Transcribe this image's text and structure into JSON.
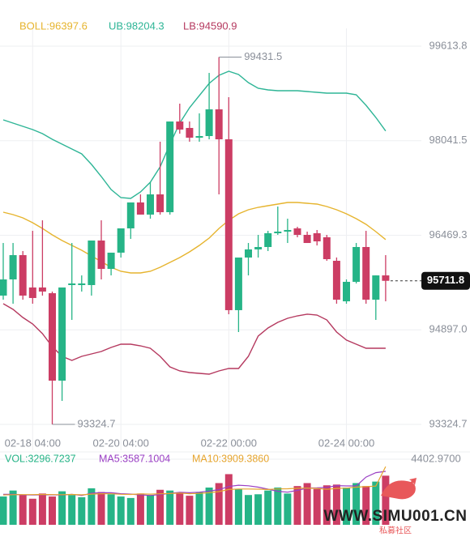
{
  "chart_data": {
    "type": "candlestick",
    "up_color": "#26b487",
    "down_color": "#cc3d64",
    "categories": [
      null,
      null,
      null,
      "02-18 04:00",
      null,
      null,
      null,
      null,
      null,
      null,
      null,
      null,
      "02-20 04:00",
      null,
      null,
      null,
      null,
      null,
      null,
      null,
      null,
      null,
      null,
      "02-22 00:00",
      null,
      null,
      null,
      null,
      null,
      null,
      null,
      null,
      null,
      null,
      null,
      "02-24 00:00",
      null,
      null,
      null,
      null
    ],
    "open": [
      95466,
      95735,
      96139,
      95601,
      95601,
      95506,
      94052,
      95641,
      95641,
      95641,
      96382,
      95910,
      96180,
      96584,
      97015,
      96813,
      97149,
      96853,
      98361,
      98254,
      98092,
      98119,
      98563,
      98065,
      95224,
      96099,
      96234,
      96274,
      96503,
      96530,
      96584,
      96476,
      96503,
      96436,
      96045,
      95371,
      95695,
      96274,
      95398,
      95802
    ],
    "high": [
      96341,
      96341,
      96207,
      96543,
      96718,
      95533,
      95601,
      96341,
      95802,
      96382,
      96718,
      96180,
      96584,
      97015,
      97149,
      97351,
      98025,
      98361,
      98658,
      98361,
      98496,
      99169,
      99431.5,
      98765,
      96099,
      96341,
      96476,
      96543,
      96947,
      96745,
      96610,
      96530,
      96557,
      96476,
      96100,
      95735,
      96341,
      96543,
      95802,
      96139
    ],
    "low": [
      95398,
      95331,
      95398,
      95331,
      95466,
      93324.7,
      93716,
      95062,
      95533,
      95466,
      95735,
      95802,
      96099,
      96409,
      96813,
      96745,
      96813,
      96813,
      98159,
      98025,
      98025,
      98065,
      97149,
      95157,
      94860,
      95802,
      96099,
      96207,
      96476,
      96341,
      96436,
      96341,
      96300,
      96045,
      95331,
      95331,
      95668,
      95331,
      95062,
      95371
    ],
    "close": [
      95735,
      96139,
      95466,
      95426,
      95533,
      94052,
      95601,
      95668,
      95668,
      96382,
      95910,
      96180,
      96584,
      97015,
      96813,
      97149,
      96853,
      98361,
      98227,
      98092,
      98119,
      98563,
      98065,
      95224,
      96099,
      96234,
      96274,
      96503,
      96530,
      96557,
      96476,
      96341,
      96368,
      96072,
      95398,
      95695,
      96274,
      95398,
      95802,
      95711.8
    ],
    "bands": [
      {
        "label": "BOLL:96397.6",
        "color": "#e6b42e",
        "values": [
          96853,
          96813,
          96759,
          96678,
          96583,
          96476,
          96382,
          96301,
          96220,
          96126,
          96032,
          95937,
          95870,
          95843,
          95843,
          95870,
          95937,
          96018,
          96099,
          96193,
          96301,
          96422,
          96583,
          96718,
          96826,
          96893,
          96934,
          96961,
          96988,
          97015,
          97015,
          97001,
          96988,
          96947,
          96893,
          96826,
          96745,
          96651,
          96530,
          96397.6
        ]
      },
      {
        "label": "UB:98204.3",
        "color": "#2eb596",
        "values": [
          98388,
          98334,
          98281,
          98227,
          98159,
          98065,
          97984,
          97903,
          97823,
          97648,
          97446,
          97230,
          97096,
          97082,
          97190,
          97351,
          97607,
          97984,
          98334,
          98590,
          98792,
          98994,
          99129,
          99196,
          99142,
          99008,
          98913,
          98887,
          98873,
          98873,
          98873,
          98860,
          98846,
          98833,
          98833,
          98833,
          98806,
          98631,
          98429,
          98204.3
        ]
      },
      {
        "label": "LB:94590.9",
        "color": "#b5395f",
        "values": [
          95331,
          95237,
          95102,
          94995,
          94833,
          94618,
          94456,
          94389,
          94456,
          94496,
          94537,
          94604,
          94658,
          94658,
          94631,
          94591,
          94456,
          94281,
          94214,
          94187,
          94173,
          94160,
          94214,
          94254,
          94254,
          94456,
          94793,
          94927,
          95022,
          95089,
          95129,
          95157,
          95143,
          95062,
          94860,
          94726,
          94658,
          94591,
          94591,
          94590.9
        ]
      }
    ],
    "ylim": [
      93109.2,
      99775.4
    ],
    "yticks": [
      99613.8,
      98041.5,
      96469.3,
      {
        "value": 94897,
        "label": "94897.0"
      },
      93324.7
    ],
    "grid": true,
    "volume": {
      "label": "VOL:3296.7237",
      "values": [
        1900,
        2300,
        2000,
        1750,
        2100,
        1900,
        2250,
        2000,
        1850,
        2450,
        2200,
        2050,
        1900,
        1800,
        2100,
        2000,
        2350,
        2300,
        2150,
        1950,
        2200,
        2500,
        2800,
        3400,
        2400,
        2000,
        2050,
        2300,
        2500,
        2100,
        2600,
        2800,
        2400,
        2650,
        2700,
        2500,
        2800,
        2600,
        2900,
        3296.7237
      ],
      "ylim": [
        0,
        4402.97
      ],
      "yticks": [
        {
          "value": 4402.97,
          "label": "4402.9700"
        }
      ],
      "lines": [
        {
          "label": "MA5:3587.1004",
          "color": "#9a3fc4",
          "values": [
            2050,
            2050,
            2010,
            2000,
            2010,
            2010,
            2000,
            2050,
            1970,
            2120,
            2150,
            2150,
            2090,
            2060,
            2010,
            1970,
            2030,
            2110,
            2180,
            2150,
            2190,
            2260,
            2360,
            2570,
            2660,
            2620,
            2530,
            2390,
            2250,
            2190,
            2310,
            2460,
            2480,
            2510,
            2630,
            2610,
            2610,
            3200,
            3500,
            3587.1004
          ]
        },
        {
          "label": "MA10:3909.3860",
          "color": "#e6a52e",
          "values": [
            2000,
            2020,
            2030,
            2030,
            2040,
            2030,
            2020,
            2040,
            2010,
            2060,
            2090,
            2080,
            2050,
            2040,
            2070,
            2060,
            2080,
            2100,
            2130,
            2090,
            2110,
            2150,
            2230,
            2370,
            2400,
            2400,
            2390,
            2370,
            2410,
            2420,
            2450,
            2460,
            2440,
            2380,
            2440,
            2460,
            2530,
            2560,
            2600,
            3909.386
          ]
        }
      ]
    },
    "watermark": {
      "text": "WWW.SIMU001.CN",
      "subtext": "私募社区"
    }
  }
}
